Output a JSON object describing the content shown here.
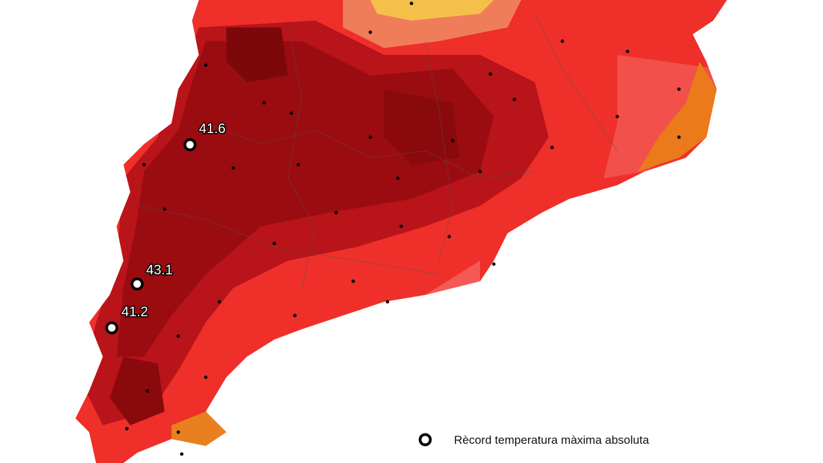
{
  "map": {
    "records": [
      {
        "label": "41.6"
      },
      {
        "label": "43.1"
      },
      {
        "label": "41.2"
      }
    ],
    "legend": {
      "label": "Rècord temperatura màxima absoluta"
    }
  }
}
